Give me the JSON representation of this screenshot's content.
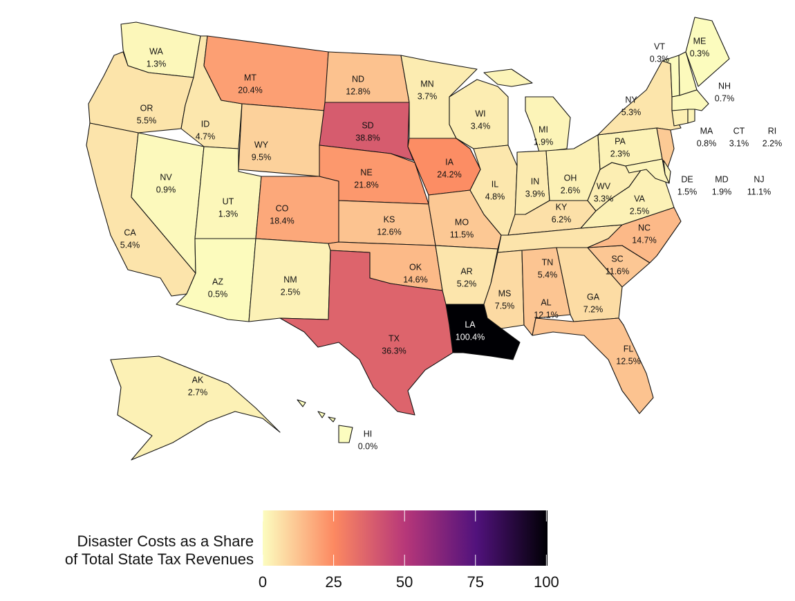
{
  "chart_data": {
    "type": "choropleth",
    "categories": [
      "WA",
      "OR",
      "CA",
      "NV",
      "ID",
      "MT",
      "WY",
      "UT",
      "AZ",
      "CO",
      "NM",
      "ND",
      "SD",
      "NE",
      "KS",
      "OK",
      "TX",
      "MN",
      "IA",
      "MO",
      "AR",
      "LA",
      "WI",
      "IL",
      "MI",
      "IN",
      "OH",
      "KY",
      "TN",
      "MS",
      "AL",
      "GA",
      "FL",
      "SC",
      "NC",
      "VA",
      "WV",
      "PA",
      "NY",
      "VT",
      "NH",
      "ME",
      "MA",
      "CT",
      "RI",
      "NJ",
      "DE",
      "MD",
      "AK",
      "HI"
    ],
    "values": [
      1.3,
      5.5,
      5.4,
      0.9,
      4.7,
      20.4,
      9.5,
      1.3,
      0.5,
      18.4,
      2.5,
      12.8,
      38.8,
      21.8,
      12.6,
      14.6,
      36.3,
      3.7,
      24.2,
      11.5,
      5.2,
      100.4,
      3.4,
      4.8,
      1.9,
      3.9,
      2.6,
      6.2,
      5.4,
      7.5,
      12.1,
      7.2,
      12.5,
      11.6,
      14.7,
      2.5,
      3.3,
      2.3,
      5.3,
      0.3,
      0.7,
      0.3,
      0.8,
      3.1,
      2.2,
      11.1,
      1.5,
      1.9,
      2.7,
      0.0
    ],
    "value_labels": [
      "1.3%",
      "5.5%",
      "5.4%",
      "0.9%",
      "4.7%",
      "20.4%",
      "9.5%",
      "1.3%",
      "0.5%",
      "18.4%",
      "2.5%",
      "12.8%",
      "38.8%",
      "21.8%",
      "12.6%",
      "14.6%",
      "36.3%",
      "3.7%",
      "24.2%",
      "11.5%",
      "5.2%",
      "100.4%",
      "3.4%",
      "4.8%",
      "1.9%",
      "3.9%",
      "2.6%",
      "6.2%",
      "5.4%",
      "7.5%",
      "12.1%",
      "7.2%",
      "12.5%",
      "11.6%",
      "14.7%",
      "2.5%",
      "3.3%",
      "2.3%",
      "5.3%",
      "0.3%",
      "0.7%",
      "0.3%",
      "0.8%",
      "3.1%",
      "2.2%",
      "11.1%",
      "1.5%",
      "1.9%",
      "2.7%",
      "0.0%"
    ],
    "legend_title": [
      "Disaster Costs as a Share",
      "of Total State Tax Revenues"
    ],
    "clim": [
      0,
      100.4
    ],
    "cticks": [
      0,
      25,
      50,
      75,
      100
    ],
    "colorscale": [
      "#fcfdbf",
      "#fc8961",
      "#b73779",
      "#51127c",
      "#000004"
    ]
  }
}
